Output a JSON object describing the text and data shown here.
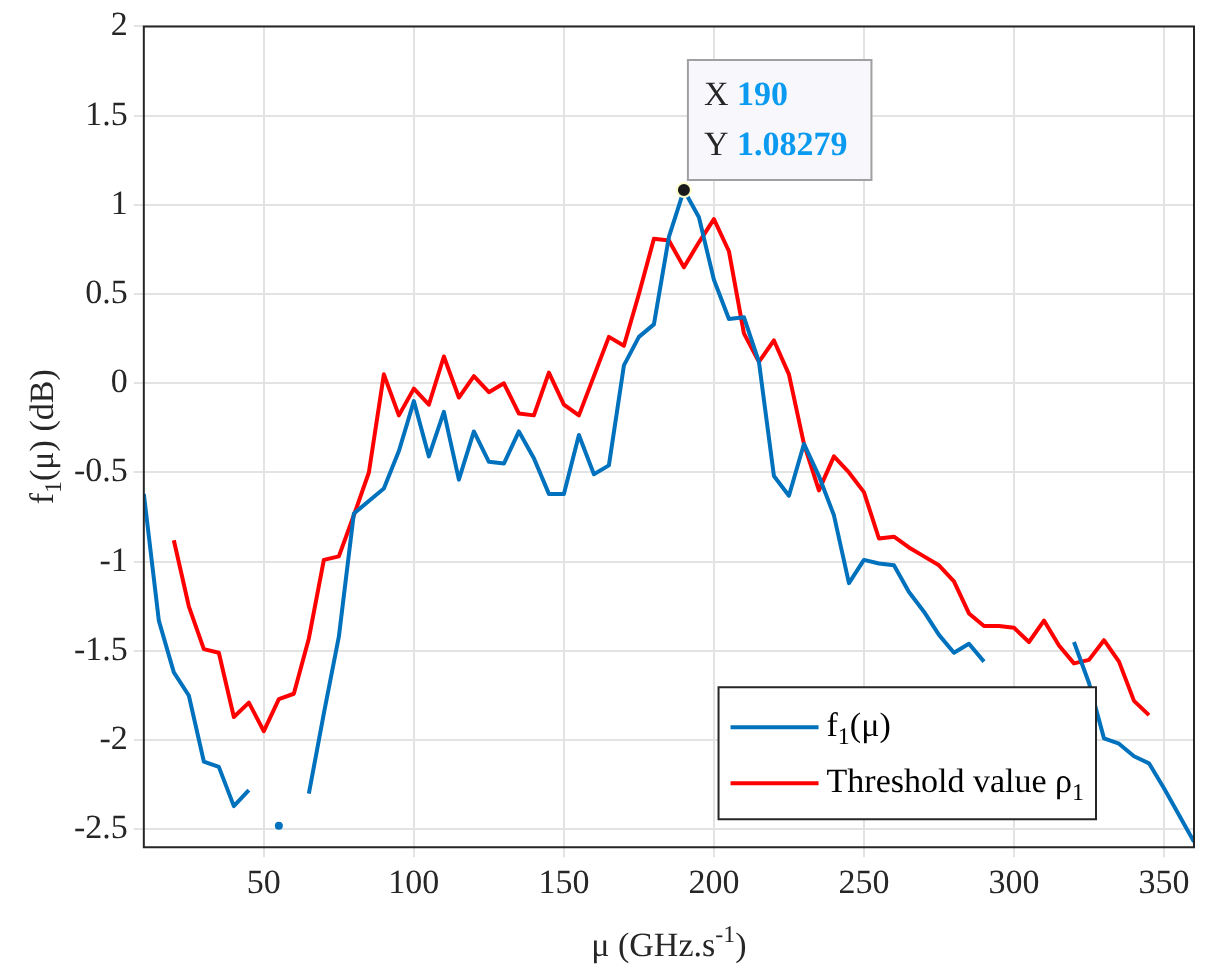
{
  "chart_data": {
    "type": "line",
    "xlabel": "μ (GHz.s$^{-1}$)",
    "ylabel": "f$_{1}$(μ) (dB)",
    "x": [
      10,
      15,
      20,
      25,
      30,
      35,
      40,
      45,
      50,
      55,
      60,
      65,
      70,
      75,
      80,
      85,
      90,
      95,
      100,
      105,
      110,
      115,
      120,
      125,
      130,
      135,
      140,
      145,
      150,
      155,
      160,
      165,
      170,
      175,
      180,
      185,
      190,
      195,
      200,
      205,
      210,
      215,
      220,
      225,
      230,
      235,
      240,
      245,
      250,
      255,
      260,
      265,
      270,
      275,
      280,
      285,
      290,
      295,
      300,
      305,
      310,
      315,
      320,
      325,
      330,
      335,
      340,
      345,
      350,
      355,
      360
    ],
    "series": [
      {
        "name": "f$_{1}$(μ)",
        "color": "#0072bd",
        "values": [
          -0.62,
          -1.33,
          -1.62,
          -1.75,
          -2.12,
          -2.15,
          -2.37,
          -2.28,
          null,
          -2.48,
          null,
          -2.3,
          -1.85,
          -1.42,
          -0.73,
          -0.66,
          -0.59,
          -0.38,
          -0.1,
          -0.41,
          -0.16,
          -0.54,
          -0.27,
          -0.44,
          -0.45,
          -0.27,
          -0.42,
          -0.62,
          -0.62,
          -0.29,
          -0.51,
          -0.46,
          0.1,
          0.26,
          0.33,
          0.82,
          1.08279,
          0.93,
          0.58,
          0.36,
          0.37,
          0.12,
          -0.52,
          -0.63,
          -0.34,
          -0.52,
          -0.74,
          -1.12,
          -0.99,
          -1.01,
          -1.02,
          -1.17,
          -1.28,
          -1.41,
          -1.51,
          -1.46,
          -1.56,
          null,
          null,
          null,
          null,
          null,
          -1.45,
          -1.68,
          -1.99,
          -2.02,
          -2.09,
          -2.13,
          -2.27,
          -2.42,
          -2.57
        ]
      },
      {
        "name": "Threshold value ρ$_{1}$",
        "color": "#ff0000",
        "values": [
          null,
          null,
          -0.88,
          -1.25,
          -1.49,
          -1.51,
          -1.87,
          -1.79,
          -1.95,
          -1.77,
          -1.74,
          -1.43,
          -0.99,
          -0.97,
          -0.74,
          -0.5,
          0.05,
          -0.18,
          -0.03,
          -0.12,
          0.15,
          -0.08,
          0.04,
          -0.05,
          0.0,
          -0.17,
          -0.18,
          0.06,
          -0.12,
          -0.18,
          0.04,
          0.26,
          0.21,
          0.5,
          0.81,
          0.8,
          0.65,
          0.79,
          0.92,
          0.74,
          0.28,
          0.12,
          0.24,
          0.05,
          -0.34,
          -0.6,
          -0.41,
          -0.5,
          -0.61,
          -0.87,
          -0.86,
          -0.92,
          -0.97,
          -1.02,
          -1.11,
          -1.29,
          -1.36,
          -1.36,
          -1.37,
          -1.45,
          -1.33,
          -1.47,
          -1.57,
          -1.55,
          -1.44,
          -1.56,
          -1.78,
          -1.86,
          null,
          null,
          null
        ]
      }
    ],
    "xlim": [
      10,
      360
    ],
    "xticks": [
      50,
      100,
      150,
      200,
      250,
      300,
      350
    ],
    "ylim": [
      -2.6,
      2
    ],
    "yticks": [
      -2.5,
      -2,
      -1.5,
      -1,
      -0.5,
      0,
      0.5,
      1,
      1.5,
      2
    ],
    "grid": true,
    "legend": "bottom right",
    "annotations": [
      {
        "text": "X 190\nY 1.08279",
        "x": 190,
        "y": 1.08279
      }
    ]
  }
}
